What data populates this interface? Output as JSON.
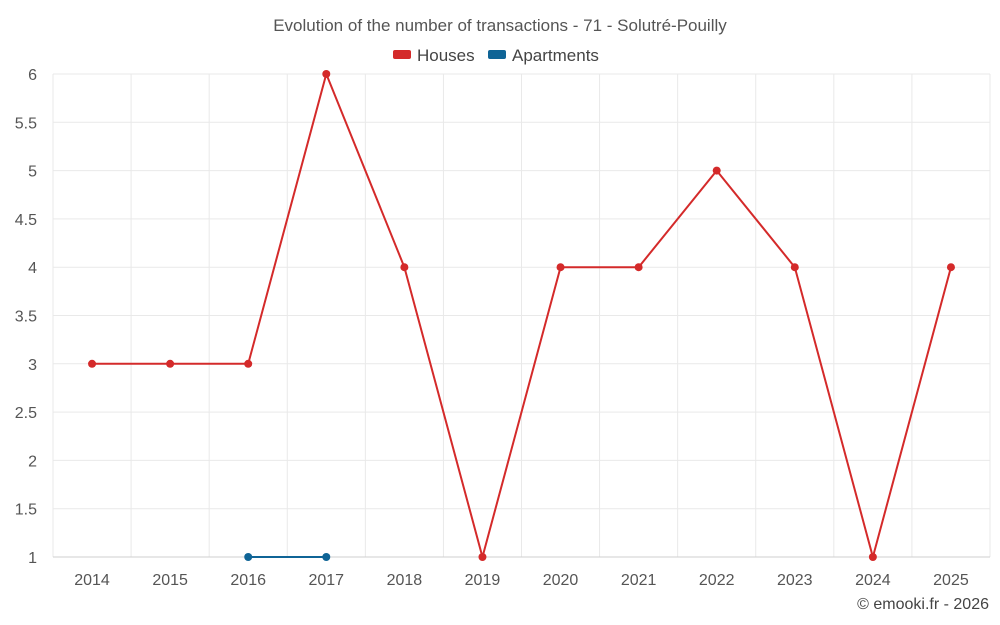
{
  "chart_data": {
    "type": "line",
    "title": "Evolution of the number of transactions - 71 - Solutré-Pouilly",
    "categories": [
      "2014",
      "2015",
      "2016",
      "2017",
      "2018",
      "2019",
      "2020",
      "2021",
      "2022",
      "2023",
      "2024",
      "2025"
    ],
    "series": [
      {
        "name": "Houses",
        "color": "#d42a2a",
        "values": [
          3,
          3,
          3,
          6,
          4,
          1,
          4,
          4,
          5,
          4,
          1,
          4
        ]
      },
      {
        "name": "Apartments",
        "color": "#0f6496",
        "values": [
          null,
          null,
          1,
          1,
          null,
          null,
          null,
          null,
          null,
          null,
          null,
          null
        ]
      }
    ],
    "ylim": [
      1,
      6
    ],
    "yticks": [
      "1",
      "1.5",
      "2",
      "2.5",
      "3",
      "3.5",
      "4",
      "4.5",
      "5",
      "5.5",
      "6"
    ],
    "ytick_values": [
      1,
      1.5,
      2,
      2.5,
      3,
      3.5,
      4,
      4.5,
      5,
      5.5,
      6
    ],
    "grid": true,
    "legend_position": "top-center",
    "xlabel": "",
    "ylabel": ""
  },
  "footer": {
    "credit": "© emooki.fr - 2026"
  }
}
